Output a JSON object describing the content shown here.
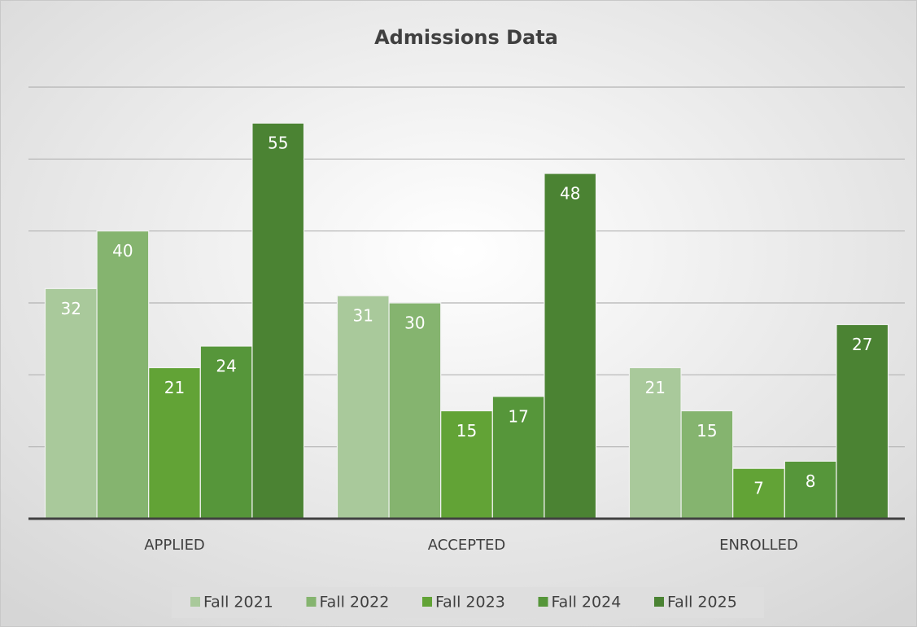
{
  "chart_data": {
    "type": "bar",
    "title": "Admissions Data",
    "categories": [
      "APPLIED",
      "ACCEPTED",
      "ENROLLED"
    ],
    "series": [
      {
        "name": "Fall 2021",
        "color": "#a9c99b",
        "values": [
          32,
          31,
          21
        ]
      },
      {
        "name": "Fall 2022",
        "color": "#85b46f",
        "values": [
          40,
          30,
          15
        ]
      },
      {
        "name": "Fall 2023",
        "color": "#62a336",
        "values": [
          21,
          15,
          7
        ]
      },
      {
        "name": "Fall 2024",
        "color": "#56963a",
        "values": [
          24,
          17,
          8
        ]
      },
      {
        "name": "Fall 2025",
        "color": "#4b8333",
        "values": [
          55,
          48,
          27
        ]
      }
    ],
    "ylim": [
      0,
      60
    ],
    "yticks": [
      0,
      10,
      20,
      30,
      40,
      50,
      60
    ],
    "grid": true,
    "legend": "bottom"
  }
}
